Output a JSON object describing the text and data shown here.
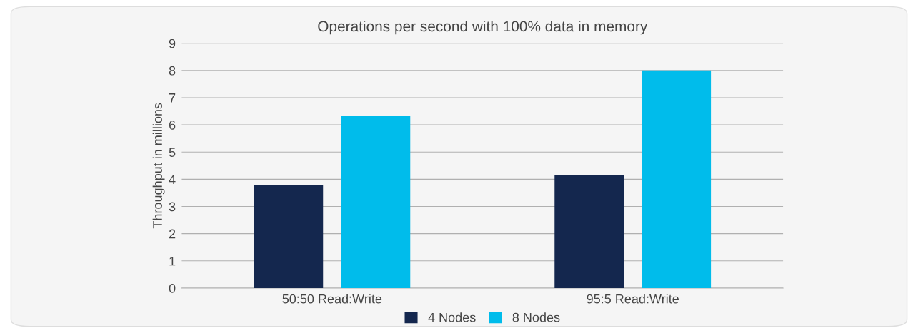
{
  "chart_data": {
    "type": "bar",
    "title": "Operations per second with 100% data in memory",
    "ylabel": "Throughput in millions",
    "categories": [
      "50:50 Read:Write",
      "95:5 Read:Write"
    ],
    "series": [
      {
        "name": "4 Nodes",
        "color": "#14274e",
        "values": [
          3.8,
          4.15
        ]
      },
      {
        "name": "8 Nodes",
        "color": "#00bceb",
        "values": [
          6.33,
          8.0
        ]
      }
    ],
    "ylim": [
      0,
      9
    ],
    "yticks": [
      0,
      1,
      2,
      3,
      4,
      5,
      6,
      7,
      8,
      9
    ],
    "grid": "y",
    "legend": "bottom"
  }
}
